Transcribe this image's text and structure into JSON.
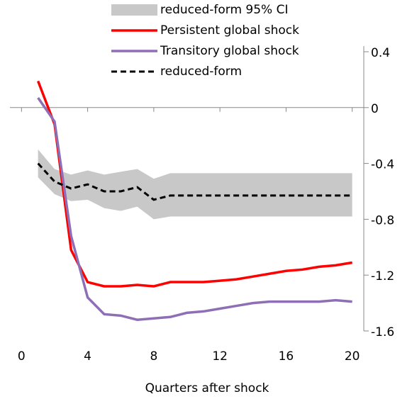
{
  "chart_data": {
    "type": "line",
    "x_label": "Quarters after shock",
    "x": [
      1,
      2,
      3,
      4,
      5,
      6,
      7,
      8,
      9,
      10,
      11,
      12,
      13,
      14,
      15,
      16,
      17,
      18,
      19,
      20
    ],
    "band": {
      "name": "reduced-form 95% CI",
      "color": "#c8c8c8",
      "lower": [
        -0.5,
        -0.62,
        -0.67,
        -0.66,
        -0.72,
        -0.74,
        -0.71,
        -0.8,
        -0.78,
        -0.78,
        -0.78,
        -0.78,
        -0.78,
        -0.78,
        -0.78,
        -0.78,
        -0.78,
        -0.78,
        -0.78,
        -0.78
      ],
      "upper": [
        -0.3,
        -0.44,
        -0.48,
        -0.45,
        -0.48,
        -0.46,
        -0.44,
        -0.51,
        -0.47,
        -0.47,
        -0.47,
        -0.47,
        -0.47,
        -0.47,
        -0.47,
        -0.47,
        -0.47,
        -0.47,
        -0.47,
        -0.47
      ]
    },
    "series": [
      {
        "name": "Persistent global shock",
        "color": "#ff0000",
        "dashed": false,
        "values": [
          0.19,
          -0.12,
          -1.02,
          -1.25,
          -1.28,
          -1.28,
          -1.27,
          -1.28,
          -1.25,
          -1.25,
          -1.25,
          -1.24,
          -1.23,
          -1.21,
          -1.19,
          -1.17,
          -1.16,
          -1.14,
          -1.13,
          -1.11
        ]
      },
      {
        "name": "Transitory global shock",
        "color": "#8e6fb5",
        "dashed": false,
        "values": [
          0.07,
          -0.1,
          -0.92,
          -1.36,
          -1.48,
          -1.49,
          -1.52,
          -1.51,
          -1.5,
          -1.47,
          -1.46,
          -1.44,
          -1.42,
          -1.4,
          -1.39,
          -1.39,
          -1.39,
          -1.39,
          -1.38,
          -1.39
        ]
      },
      {
        "name": "reduced-form",
        "color": "#000000",
        "dashed": true,
        "values": [
          -0.4,
          -0.53,
          -0.58,
          -0.55,
          -0.6,
          -0.6,
          -0.57,
          -0.66,
          -0.63,
          -0.63,
          -0.63,
          -0.63,
          -0.63,
          -0.63,
          -0.63,
          -0.63,
          -0.63,
          -0.63,
          -0.63,
          -0.63
        ]
      }
    ],
    "xlim": [
      -0.7,
      20.7
    ],
    "xticks": [
      0,
      4,
      8,
      12,
      16,
      20
    ],
    "ylim": [
      -1.6,
      0.44
    ],
    "yticks": [
      0.4,
      0,
      -0.4,
      -0.8,
      -1.2,
      -1.6
    ]
  }
}
